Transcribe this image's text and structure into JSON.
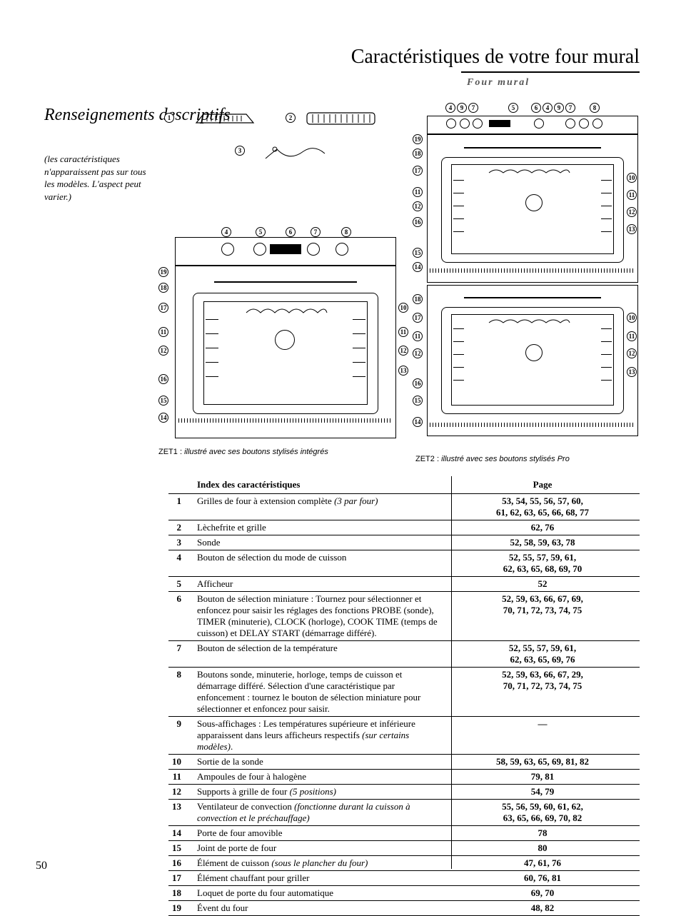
{
  "page_title": "Caractéristiques de votre four mural",
  "subtitle": "Four mural",
  "sidebar_heading": "Renseignements descriptifs",
  "sidebar_note": "(les caractéristiques n'apparaissent pas sur tous les modèles. L'aspect peut varier.)",
  "page_number": "50",
  "caption_left_model": "ZET1 : ",
  "caption_left_desc": "illustré avec ses boutons stylisés intégrés",
  "caption_right_model": "ZET2 : ",
  "caption_right_desc": "illustré avec ses boutons stylisés Pro",
  "table": {
    "headers": [
      "",
      "Index des caractéristiques",
      "Page"
    ],
    "rows": [
      {
        "num": "1",
        "desc": "Grilles de four à extension complète <span class=\"ital\">(3 par four)</span>",
        "pages": "53, 54, 55, 56, 57, 60,<br>61, 62, 63, 65, 66, 68, 77"
      },
      {
        "num": "2",
        "desc": "Lèchefrite et grille",
        "pages": "62, 76"
      },
      {
        "num": "3",
        "desc": "Sonde",
        "pages": "52, 58, 59, 63, 78"
      },
      {
        "num": "4",
        "desc": "Bouton de sélection du mode de cuisson",
        "pages": "52, 55, 57, 59, 61,<br>62, 63, 65, 68, 69, 70"
      },
      {
        "num": "5",
        "desc": "Afficheur",
        "pages": "52"
      },
      {
        "num": "6",
        "desc": "Bouton de sélection miniature : Tournez pour sélectionner et enfoncez pour saisir les réglages des fonctions PROBE (sonde), TIMER (minuterie), CLOCK (horloge), COOK TIME (temps de cuisson) et DELAY START (démarrage différé).",
        "pages": "52, 59, 63, 66, 67, 69,<br>70, 71, 72, 73, 74, 75"
      },
      {
        "num": "7",
        "desc": "Bouton de sélection de la température",
        "pages": "52, 55, 57, 59, 61,<br>62, 63, 65, 69, 76"
      },
      {
        "num": "8",
        "desc": "Boutons sonde, minuterie, horloge, temps de cuisson et démarrage différé. Sélection d'une caractéristique par enfoncement : tournez le bouton de sélection miniature pour sélectionner et enfoncez pour saisir.",
        "pages": "52, 59, 63, 66, 67, 29,<br>70, 71, 72, 73, 74, 75"
      },
      {
        "num": "9",
        "desc": "Sous-affichages : Les températures supérieure et inférieure apparaissent dans leurs afficheurs respectifs <span class=\"ital\">(sur certains modèles)</span>.",
        "pages": "—"
      },
      {
        "num": "10",
        "desc": "Sortie de la sonde",
        "pages": "58, 59, 63, 65, 69, 81, 82"
      },
      {
        "num": "11",
        "desc": "Ampoules de four à halogène",
        "pages": "79, 81"
      },
      {
        "num": "12",
        "desc": "Supports à grille de four <span class=\"ital\">(5 positions)</span>",
        "pages": "54, 79"
      },
      {
        "num": "13",
        "desc": "Ventilateur de convection <span class=\"ital\">(fonctionne durant la cuisson à convection et le préchauffage)</span>",
        "pages": "55, 56, 59, 60, 61, 62,<br>63, 65, 66, 69, 70, 82"
      },
      {
        "num": "14",
        "desc": "Porte de four amovible",
        "pages": "78"
      },
      {
        "num": "15",
        "desc": "Joint de porte de four",
        "pages": "80"
      },
      {
        "num": "16",
        "desc": "Élément de cuisson <span class=\"ital\">(sous le plancher du four)</span>",
        "pages": "47, 61, 76"
      },
      {
        "num": "17",
        "desc": "Élément chauffant pour griller",
        "pages": "60, 76, 81"
      },
      {
        "num": "18",
        "desc": "Loquet de porte du four automatique",
        "pages": "69, 70"
      },
      {
        "num": "19",
        "desc": "Évent du four",
        "pages": "48, 82"
      }
    ]
  },
  "diagram": {
    "callouts_top_left": [
      "1",
      "2",
      "3"
    ],
    "callouts_single_oven_top": [
      "4",
      "5",
      "6",
      "7",
      "8"
    ],
    "callouts_single_oven_left": [
      "19",
      "18",
      "17",
      "11",
      "12",
      "16",
      "15",
      "14"
    ],
    "callouts_single_oven_right": [
      "10",
      "11",
      "12",
      "13"
    ],
    "callouts_double_oven_top": [
      "4",
      "9",
      "7",
      "5",
      "6",
      "4",
      "9",
      "7",
      "8"
    ],
    "callouts_double_oven_upper_left": [
      "19",
      "18",
      "17",
      "11",
      "12",
      "16",
      "15",
      "14"
    ],
    "callouts_double_oven_upper_right": [
      "10",
      "11",
      "12",
      "13"
    ],
    "callouts_double_oven_lower_left": [
      "18",
      "17",
      "11",
      "12",
      "16",
      "15",
      "14"
    ],
    "callouts_double_oven_lower_right": [
      "10",
      "11",
      "12",
      "13"
    ]
  }
}
